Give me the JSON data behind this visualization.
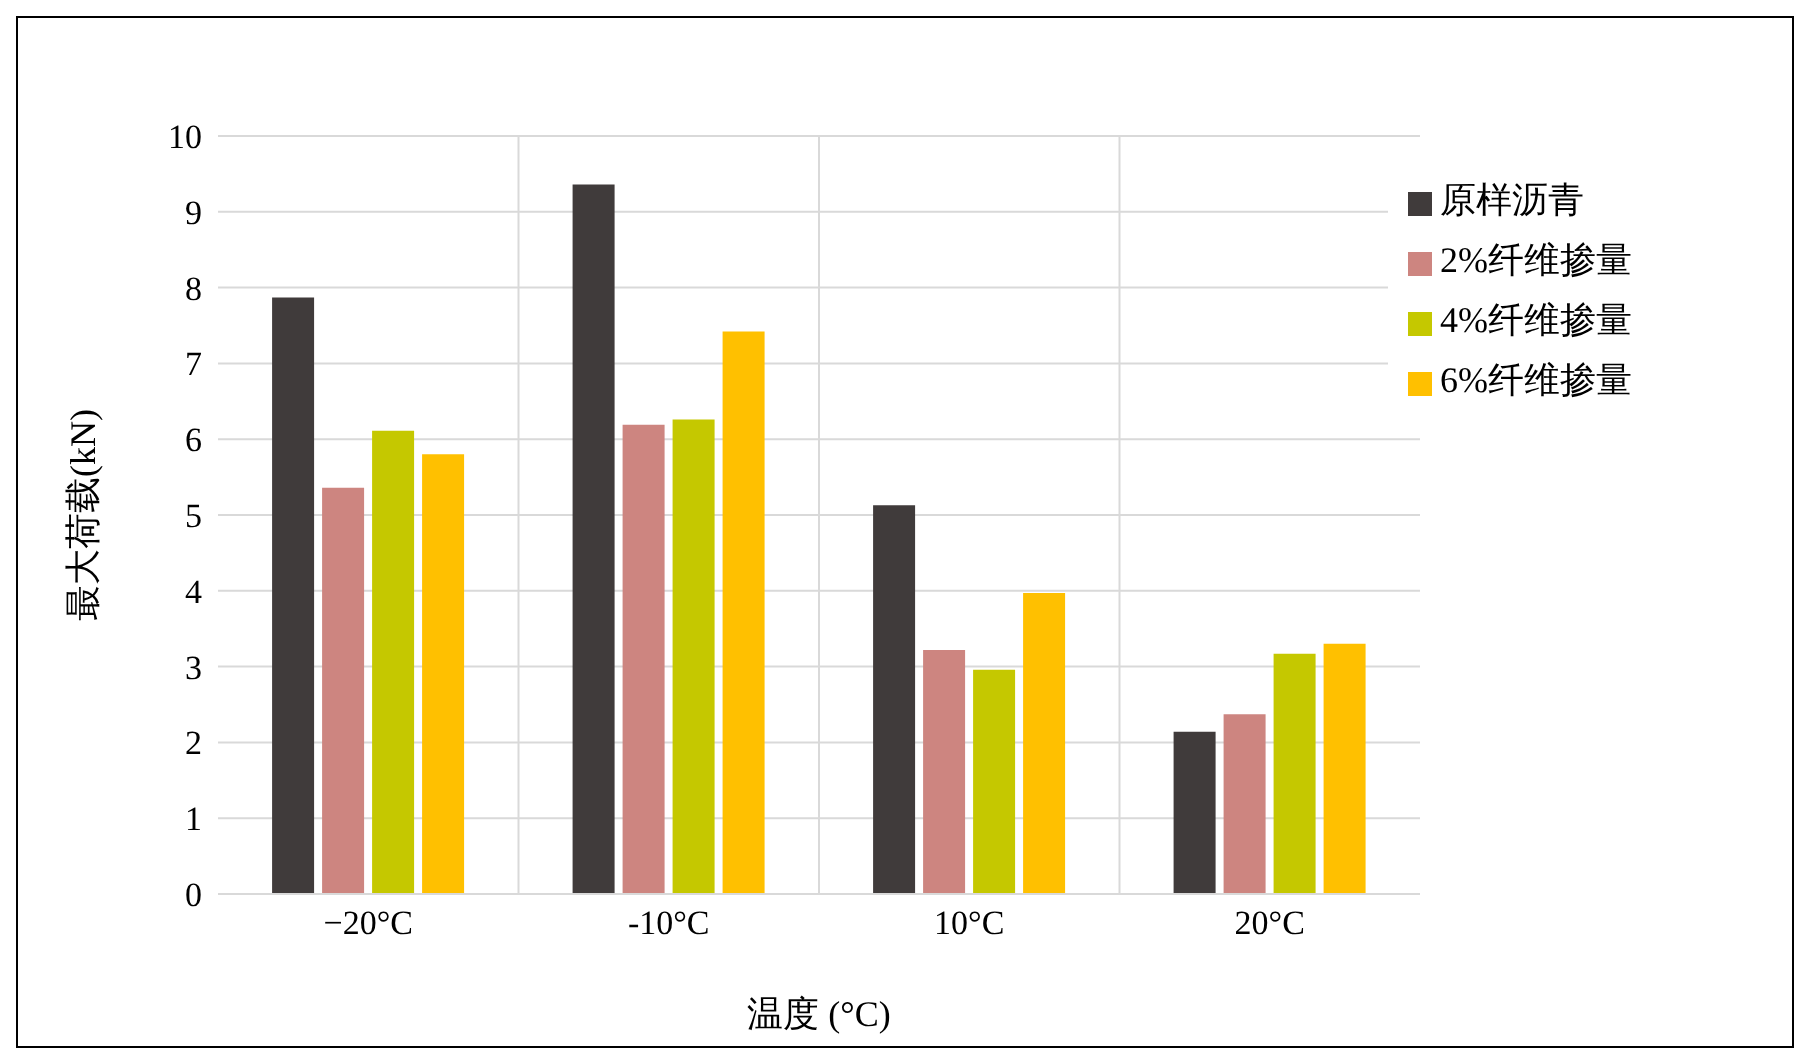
{
  "chart_data": {
    "type": "bar",
    "xlabel": "温度 (°C)",
    "ylabel": "最大荷载(kN)",
    "categories": [
      "−20°C",
      "-10°C",
      "10°C",
      "20°C"
    ],
    "series": [
      {
        "name": "原样沥青",
        "color": "#403b3b",
        "values": [
          7.87,
          9.36,
          5.13,
          2.14
        ]
      },
      {
        "name": "2%纤维掺量",
        "color": "#cd8580",
        "values": [
          5.36,
          6.19,
          3.22,
          2.37
        ]
      },
      {
        "name": "4%纤维掺量",
        "color": "#c5c800",
        "values": [
          6.11,
          6.26,
          2.96,
          3.17
        ]
      },
      {
        "name": "6%纤维掺量",
        "color": "#ffc000",
        "values": [
          5.8,
          7.42,
          3.97,
          3.3
        ]
      }
    ],
    "ylim": [
      0,
      10
    ],
    "yticks": [
      0,
      1,
      2,
      3,
      4,
      5,
      6,
      7,
      8,
      9,
      10
    ],
    "grid": true,
    "legend": "top right"
  }
}
